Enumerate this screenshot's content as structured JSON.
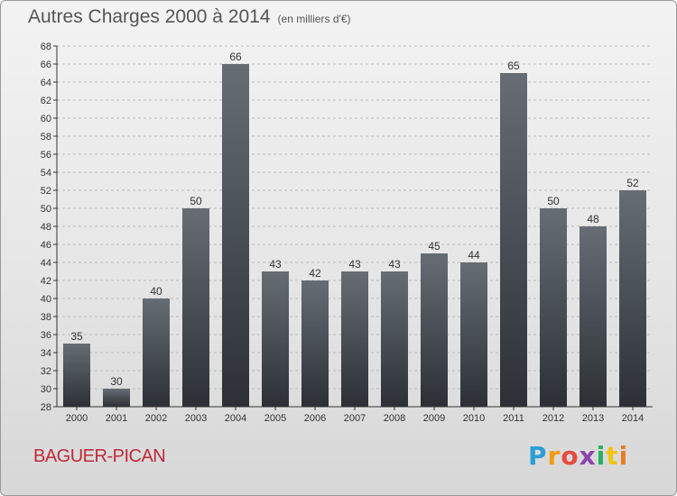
{
  "header": {
    "title": "Autres Charges 2000 à 2014",
    "subtitle": "(en milliers d'€)"
  },
  "footer": {
    "commune": "BAGUER-PICAN",
    "logo_letters": [
      "P",
      "r",
      "o",
      "x",
      "i",
      "t",
      "i"
    ],
    "logo_colors": [
      "#2a9fd6",
      "#f39c12",
      "#e74c3c",
      "#8e44ad",
      "#27ae60",
      "#f1c40f",
      "#e67e22"
    ]
  },
  "colors": {
    "bar_top": "#666d75",
    "bar_bottom": "#2c3036",
    "axis": "#333333",
    "grid": "#bbbbbb"
  },
  "chart_data": {
    "type": "bar",
    "title": "Autres Charges 2000 à 2014",
    "subtitle": "(en milliers d'€)",
    "xlabel": "",
    "ylabel": "",
    "categories": [
      "2000",
      "2001",
      "2002",
      "2003",
      "2004",
      "2005",
      "2006",
      "2007",
      "2008",
      "2009",
      "2010",
      "2011",
      "2012",
      "2013",
      "2014"
    ],
    "values": [
      35,
      30,
      40,
      50,
      66,
      43,
      42,
      43,
      43,
      45,
      44,
      65,
      50,
      48,
      52
    ],
    "ylim": [
      28,
      68
    ],
    "ytick_step": 2,
    "grid": "horizontal dashed",
    "data_labels": true
  }
}
